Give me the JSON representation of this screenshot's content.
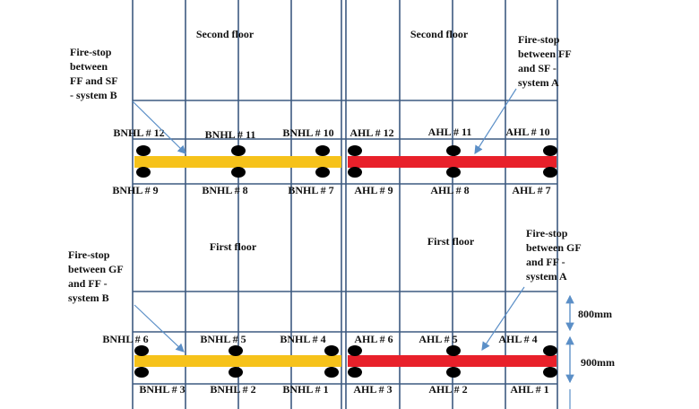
{
  "floor_labels": [
    "Second floor",
    "Second floor",
    "First floor",
    "First floor"
  ],
  "hole_labels": {
    "upper_top": [
      "BNHL # 12",
      "BNHL # 11",
      "BNHL # 10",
      "AHL # 12",
      "AHL # 11",
      "AHL # 10"
    ],
    "upper_bottom": [
      "BNHL # 9",
      "BNHL # 8",
      "BNHL # 7",
      "AHL # 9",
      "AHL # 8",
      "AHL # 7"
    ],
    "lower_top": [
      "BNHL # 6",
      "BNHL # 5",
      "BNHL # 4",
      "AHL # 6",
      "AHL # 5",
      "AHL # 4"
    ],
    "lower_bottom": [
      "BNHL # 3",
      "BNHL # 2",
      "BNHL # 1",
      "AHL # 3",
      "AHL # 2",
      "AHL # 1"
    ]
  },
  "annotations": [
    {
      "lines": [
        "Fire-stop",
        "between",
        "FF and SF",
        "- system B"
      ]
    },
    {
      "lines": [
        "Fire-stop",
        "between FF",
        "and SF -",
        "system A"
      ]
    },
    {
      "lines": [
        "Fire-stop",
        "between GF",
        "and FF -",
        "system B"
      ]
    },
    {
      "lines": [
        "Fire-stop",
        "between GF",
        "and FF -",
        "system A"
      ]
    }
  ],
  "dimensions": [
    "800mm",
    "900mm"
  ]
}
